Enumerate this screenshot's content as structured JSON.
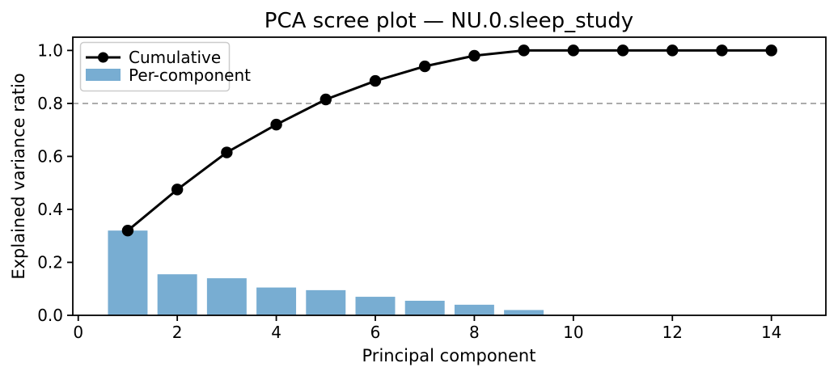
{
  "chart_data": {
    "type": "bar+line",
    "title": "PCA scree plot — NU.0.sleep_study",
    "xlabel": "Principal component",
    "ylabel": "Explained variance ratio",
    "xlim": [
      -0.11,
      15.1
    ],
    "ylim": [
      0,
      1.05
    ],
    "x_ticks": {
      "values": [
        0,
        2,
        4,
        6,
        8,
        10,
        12,
        14
      ],
      "labels": [
        "0",
        "2",
        "4",
        "6",
        "8",
        "10",
        "12",
        "14"
      ]
    },
    "y_ticks": {
      "values": [
        0.0,
        0.2,
        0.4,
        0.6,
        0.8,
        1.0
      ],
      "labels": [
        "0.0",
        "0.2",
        "0.4",
        "0.6",
        "0.8",
        "1.0"
      ]
    },
    "threshold_line": {
      "y": 0.8,
      "style": "dashed",
      "color": "#999999"
    },
    "series": [
      {
        "name": "Cumulative",
        "kind": "line",
        "marker": "circle",
        "color": "#000000",
        "x": [
          1,
          2,
          3,
          4,
          5,
          6,
          7,
          8,
          9,
          10,
          11,
          12,
          13,
          14
        ],
        "values": [
          0.32,
          0.475,
          0.615,
          0.72,
          0.815,
          0.885,
          0.94,
          0.98,
          1.0,
          1.0,
          1.0,
          1.0,
          1.0,
          1.0
        ]
      },
      {
        "name": "Per-component",
        "kind": "bar",
        "color": "#78add2",
        "bar_width": 0.8,
        "x": [
          1,
          2,
          3,
          4,
          5,
          6,
          7,
          8,
          9
        ],
        "values": [
          0.32,
          0.155,
          0.14,
          0.105,
          0.095,
          0.07,
          0.055,
          0.04,
          0.02
        ]
      }
    ],
    "legend": {
      "position": "upper-left",
      "entries": [
        "Cumulative",
        "Per-component"
      ]
    },
    "grid": false,
    "background": "#ffffff",
    "spine_color": "#000000"
  }
}
